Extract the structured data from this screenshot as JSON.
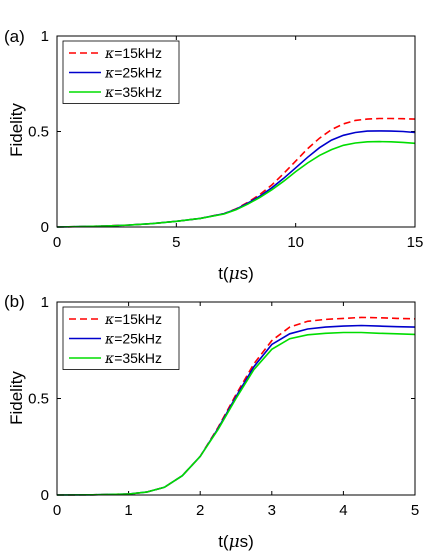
{
  "chart_data": [
    {
      "type": "line",
      "panel_label": "(a)",
      "xlabel_main": "t(",
      "xlabel_mu": "μ",
      "xlabel_end": "s)",
      "ylabel": "Fidelity",
      "xlim": [
        0,
        15
      ],
      "ylim": [
        0,
        1
      ],
      "xticks": [
        0,
        5,
        10,
        15
      ],
      "xtick_labels": [
        "0",
        "5",
        "10",
        "15"
      ],
      "yticks": [
        0,
        0.5,
        1
      ],
      "ytick_labels": [
        "0",
        "0.5",
        "1"
      ],
      "grid": false,
      "legend_position": "top-left",
      "x": [
        0,
        1,
        2,
        3,
        4,
        5,
        6,
        7,
        7.5,
        8,
        8.5,
        9,
        9.5,
        10,
        10.5,
        11,
        11.5,
        12,
        12.5,
        13,
        13.5,
        14,
        14.5,
        15
      ],
      "series": [
        {
          "name_prefix": "κ",
          "name_value": "=15kHz",
          "color": "#ff0000",
          "dash": "dashed",
          "values": [
            0,
            0.002,
            0.005,
            0.01,
            0.018,
            0.03,
            0.045,
            0.07,
            0.095,
            0.13,
            0.17,
            0.22,
            0.28,
            0.345,
            0.41,
            0.465,
            0.51,
            0.54,
            0.558,
            0.565,
            0.568,
            0.568,
            0.567,
            0.565
          ]
        },
        {
          "name_prefix": "κ",
          "name_value": "=25kHz",
          "color": "#0000cc",
          "dash": "solid",
          "values": [
            0,
            0.002,
            0.005,
            0.01,
            0.018,
            0.03,
            0.045,
            0.07,
            0.093,
            0.125,
            0.162,
            0.205,
            0.255,
            0.31,
            0.365,
            0.415,
            0.455,
            0.48,
            0.495,
            0.502,
            0.503,
            0.502,
            0.5,
            0.495
          ]
        },
        {
          "name_prefix": "κ",
          "name_value": "=35kHz",
          "color": "#00dd00",
          "dash": "solid",
          "values": [
            0,
            0.002,
            0.005,
            0.01,
            0.018,
            0.03,
            0.045,
            0.068,
            0.09,
            0.12,
            0.155,
            0.195,
            0.24,
            0.29,
            0.335,
            0.375,
            0.405,
            0.428,
            0.44,
            0.446,
            0.447,
            0.446,
            0.443,
            0.438
          ]
        }
      ]
    },
    {
      "type": "line",
      "panel_label": "(b)",
      "xlabel_main": "t(",
      "xlabel_mu": "μ",
      "xlabel_end": "s)",
      "ylabel": "Fidelity",
      "xlim": [
        0,
        5
      ],
      "ylim": [
        0,
        1
      ],
      "xticks": [
        0,
        1,
        2,
        3,
        4,
        5
      ],
      "xtick_labels": [
        "0",
        "1",
        "2",
        "3",
        "4",
        "5"
      ],
      "yticks": [
        0,
        0.5,
        1
      ],
      "ytick_labels": [
        "0",
        "0.5",
        "1"
      ],
      "grid": false,
      "legend_position": "top-left",
      "x": [
        0,
        0.5,
        1,
        1.25,
        1.5,
        1.75,
        2,
        2.25,
        2.5,
        2.75,
        3,
        3.25,
        3.5,
        3.75,
        4,
        4.25,
        4.5,
        4.75,
        5
      ],
      "series": [
        {
          "name_prefix": "κ",
          "name_value": "=15kHz",
          "color": "#ff0000",
          "dash": "dashed",
          "values": [
            0,
            0.001,
            0.005,
            0.015,
            0.04,
            0.1,
            0.2,
            0.35,
            0.52,
            0.68,
            0.8,
            0.87,
            0.9,
            0.91,
            0.915,
            0.92,
            0.918,
            0.915,
            0.913
          ]
        },
        {
          "name_prefix": "κ",
          "name_value": "=25kHz",
          "color": "#0000cc",
          "dash": "solid",
          "values": [
            0,
            0.001,
            0.005,
            0.015,
            0.04,
            0.1,
            0.2,
            0.345,
            0.51,
            0.665,
            0.78,
            0.835,
            0.86,
            0.87,
            0.875,
            0.878,
            0.875,
            0.872,
            0.87
          ]
        },
        {
          "name_prefix": "κ",
          "name_value": "=35kHz",
          "color": "#00dd00",
          "dash": "solid",
          "values": [
            0,
            0.001,
            0.005,
            0.015,
            0.04,
            0.1,
            0.2,
            0.34,
            0.5,
            0.65,
            0.755,
            0.81,
            0.83,
            0.838,
            0.842,
            0.842,
            0.838,
            0.835,
            0.832
          ]
        }
      ]
    }
  ]
}
